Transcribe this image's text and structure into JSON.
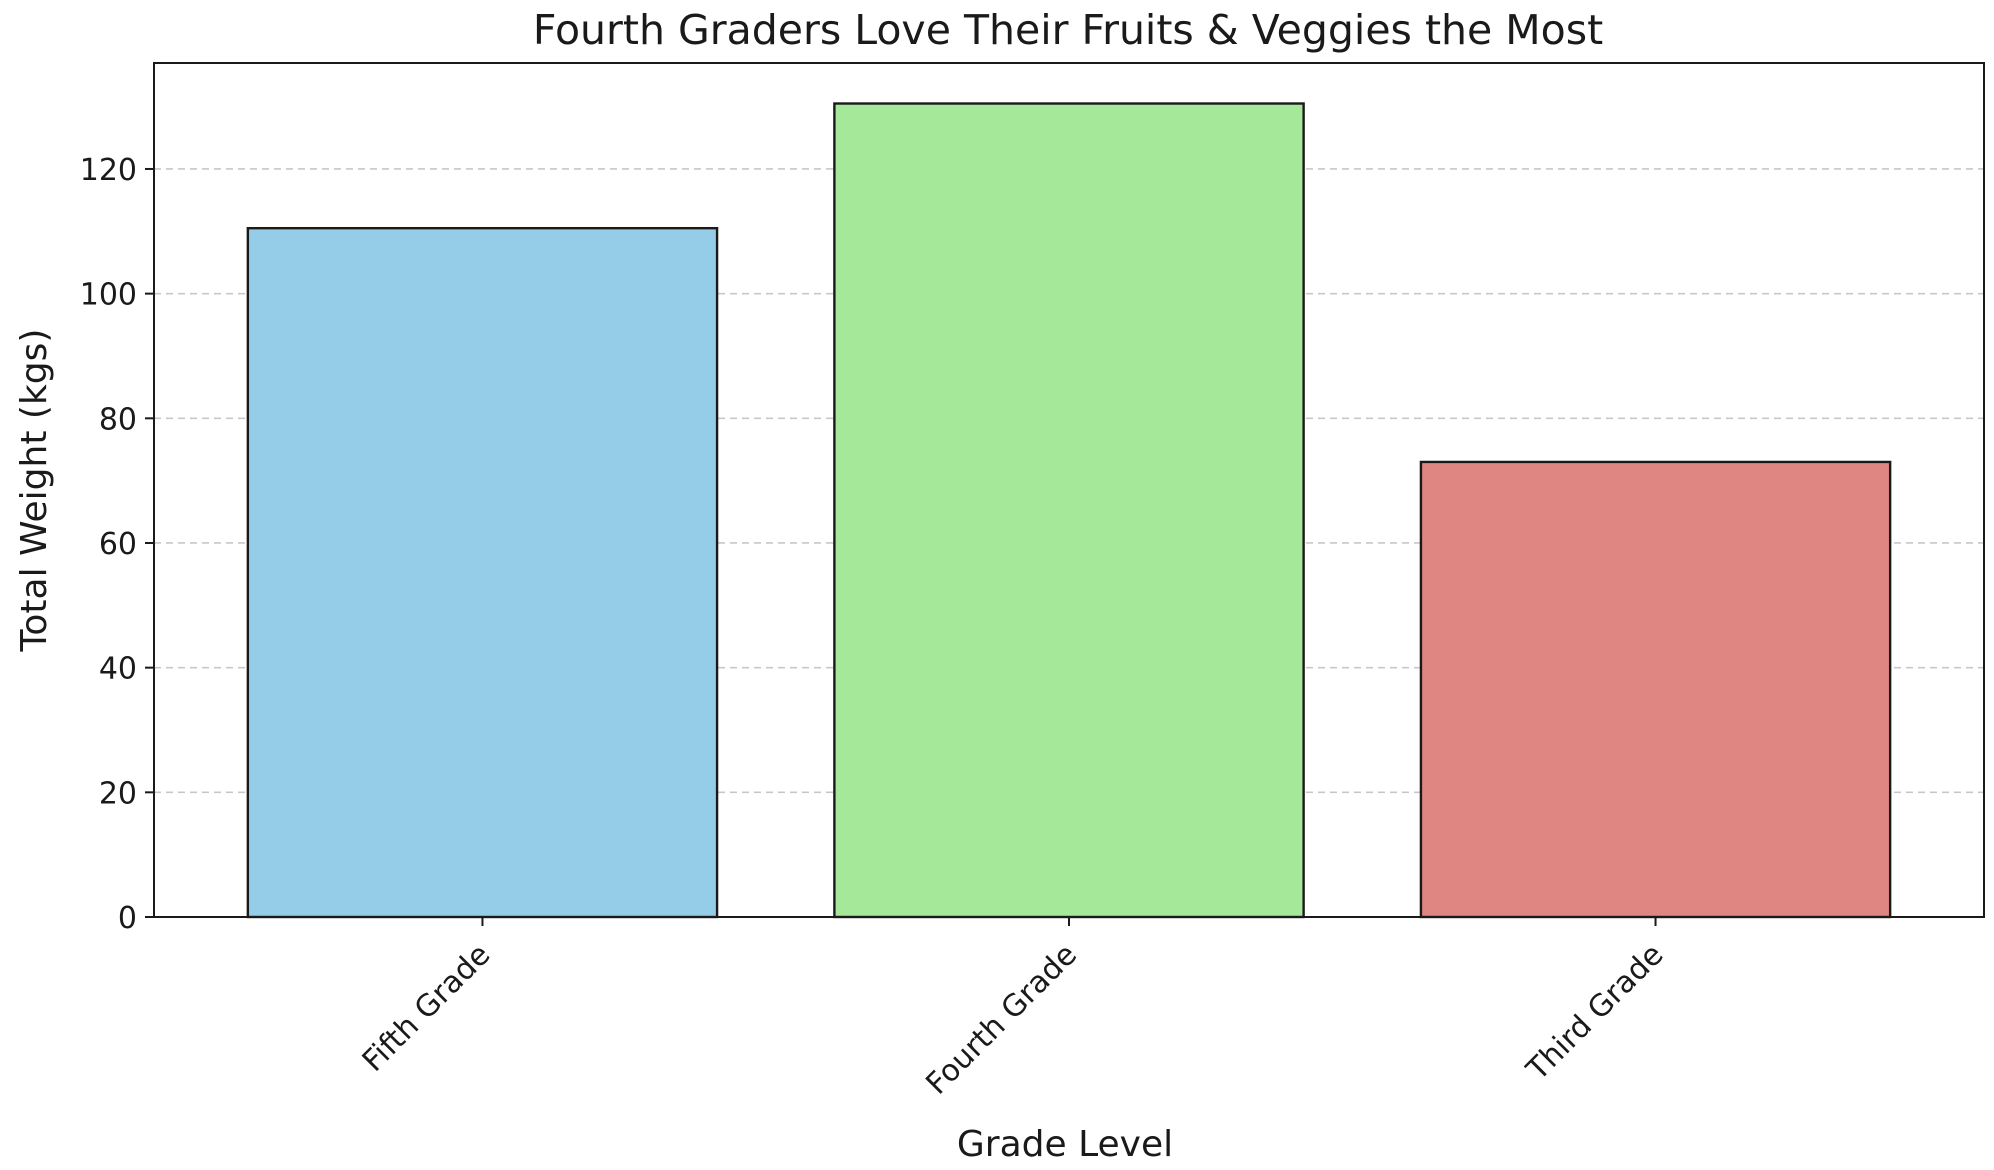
{
  "chart_data": {
    "type": "bar",
    "title": "Fourth Graders Love Their Fruits & Veggies the Most",
    "xlabel": "Grade Level",
    "ylabel": "Total Weight (kgs)",
    "categories": [
      "Fifth Grade",
      "Fourth Grade",
      "Third Grade"
    ],
    "values": [
      110.5,
      130.5,
      73
    ],
    "colors": [
      "#95cde8",
      "#a5e899",
      "#e08682"
    ],
    "ylim": [
      0,
      137
    ],
    "yticks": [
      0,
      20,
      40,
      60,
      80,
      100,
      120
    ],
    "grid": "y",
    "legend": "none"
  }
}
